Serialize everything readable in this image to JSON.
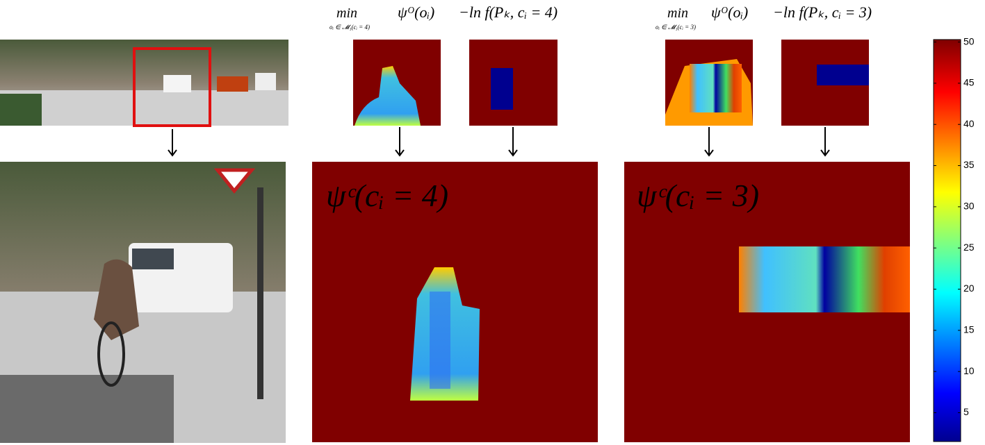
{
  "labels": [
    {
      "min": "min",
      "subscript": "oᵢ ∈ 𝓜₁(cᵢ = 4)",
      "unary": "ψᴼ(oᵢ)",
      "pairwise": "−ln f(Pₖ, cᵢ = 4)",
      "panel": "ψᶜ(cᵢ = 4)"
    },
    {
      "min": "min",
      "subscript": "oᵢ ∈ 𝓜₁(cᵢ = 3)",
      "unary": "ψᴼ(oᵢ)",
      "pairwise": "−ln f(Pₖ, cᵢ = 3)",
      "panel": "ψᶜ(cᵢ = 3)"
    }
  ],
  "colorbar": {
    "ylim": [
      1.5,
      50.3
    ],
    "yticks": [
      5,
      10,
      15,
      20,
      25,
      30,
      35,
      40,
      45,
      50
    ]
  }
}
